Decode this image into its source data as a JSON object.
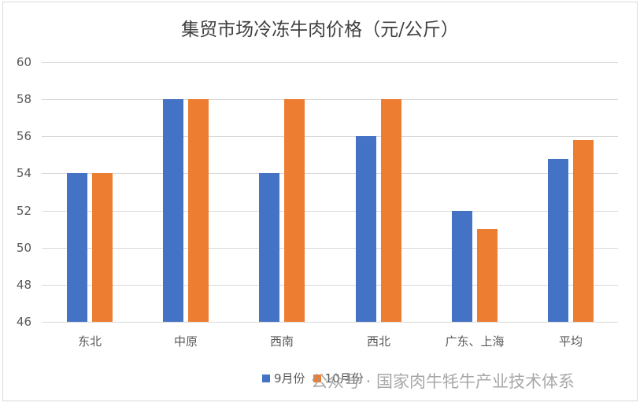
{
  "chart_data": {
    "type": "bar",
    "title": "集贸市场冷冻牛肉价格（元/公斤）",
    "categories": [
      "东北",
      "中原",
      "西南",
      "西北",
      "广东、上海",
      "平均"
    ],
    "series": [
      {
        "name": "9月份",
        "color": "#4472C4",
        "values": [
          54,
          58,
          54,
          56,
          52,
          54.8
        ]
      },
      {
        "name": "10月份",
        "color": "#ED7D31",
        "values": [
          54,
          58,
          58,
          58,
          51,
          55.8
        ]
      }
    ],
    "xlabel": "",
    "ylabel": "",
    "ylim": [
      46,
      60
    ],
    "yticks": [
      46,
      48,
      50,
      52,
      54,
      56,
      58,
      60
    ],
    "grid": true,
    "legend_position": "bottom"
  },
  "watermark": "公众号 · 国家肉牛牦牛产业技术体系"
}
